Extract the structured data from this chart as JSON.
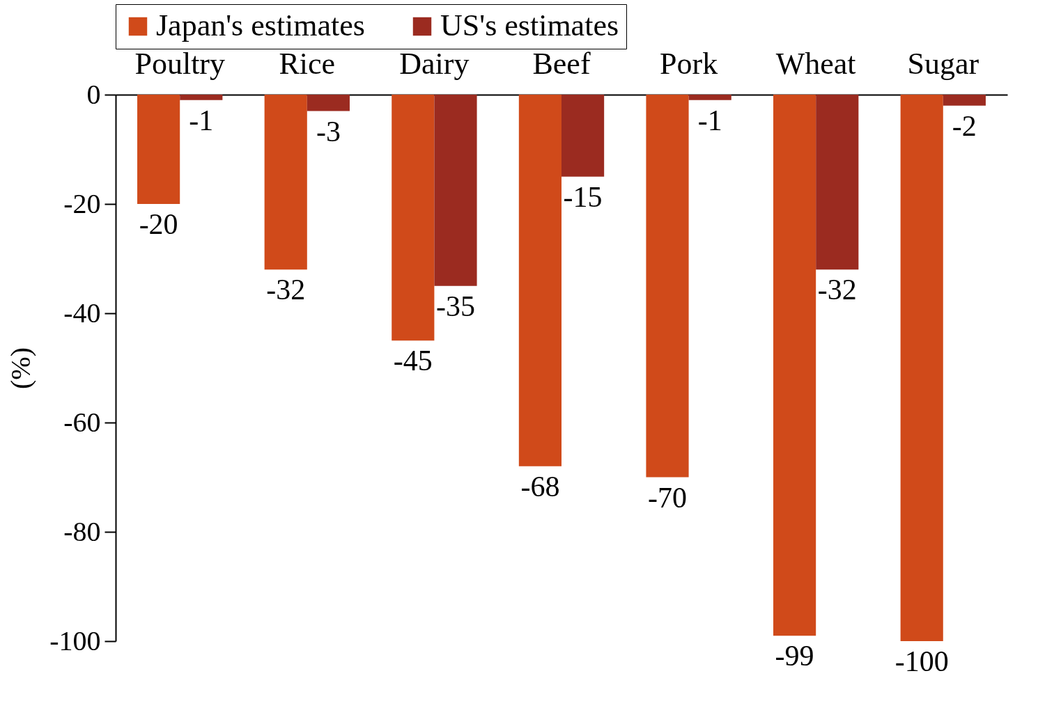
{
  "chart_data": {
    "type": "bar",
    "categories": [
      "Poultry",
      "Rice",
      "Dairy",
      "Beef",
      "Pork",
      "Wheat",
      "Sugar"
    ],
    "series": [
      {
        "name": "Japan's estimates",
        "color": "#d04a1a",
        "values": [
          -20,
          -32,
          -45,
          -68,
          -70,
          -99,
          -100
        ]
      },
      {
        "name": "US's estimates",
        "color": "#9b2b20",
        "values": [
          -1,
          -3,
          -35,
          -15,
          -1,
          -32,
          -2
        ]
      }
    ],
    "ylabel": "(%)",
    "ylim": [
      -100,
      0
    ],
    "yticks": [
      -100,
      -80,
      -60,
      -40,
      -20,
      0
    ],
    "data_labels": true,
    "legend": "top",
    "grid": false
  }
}
